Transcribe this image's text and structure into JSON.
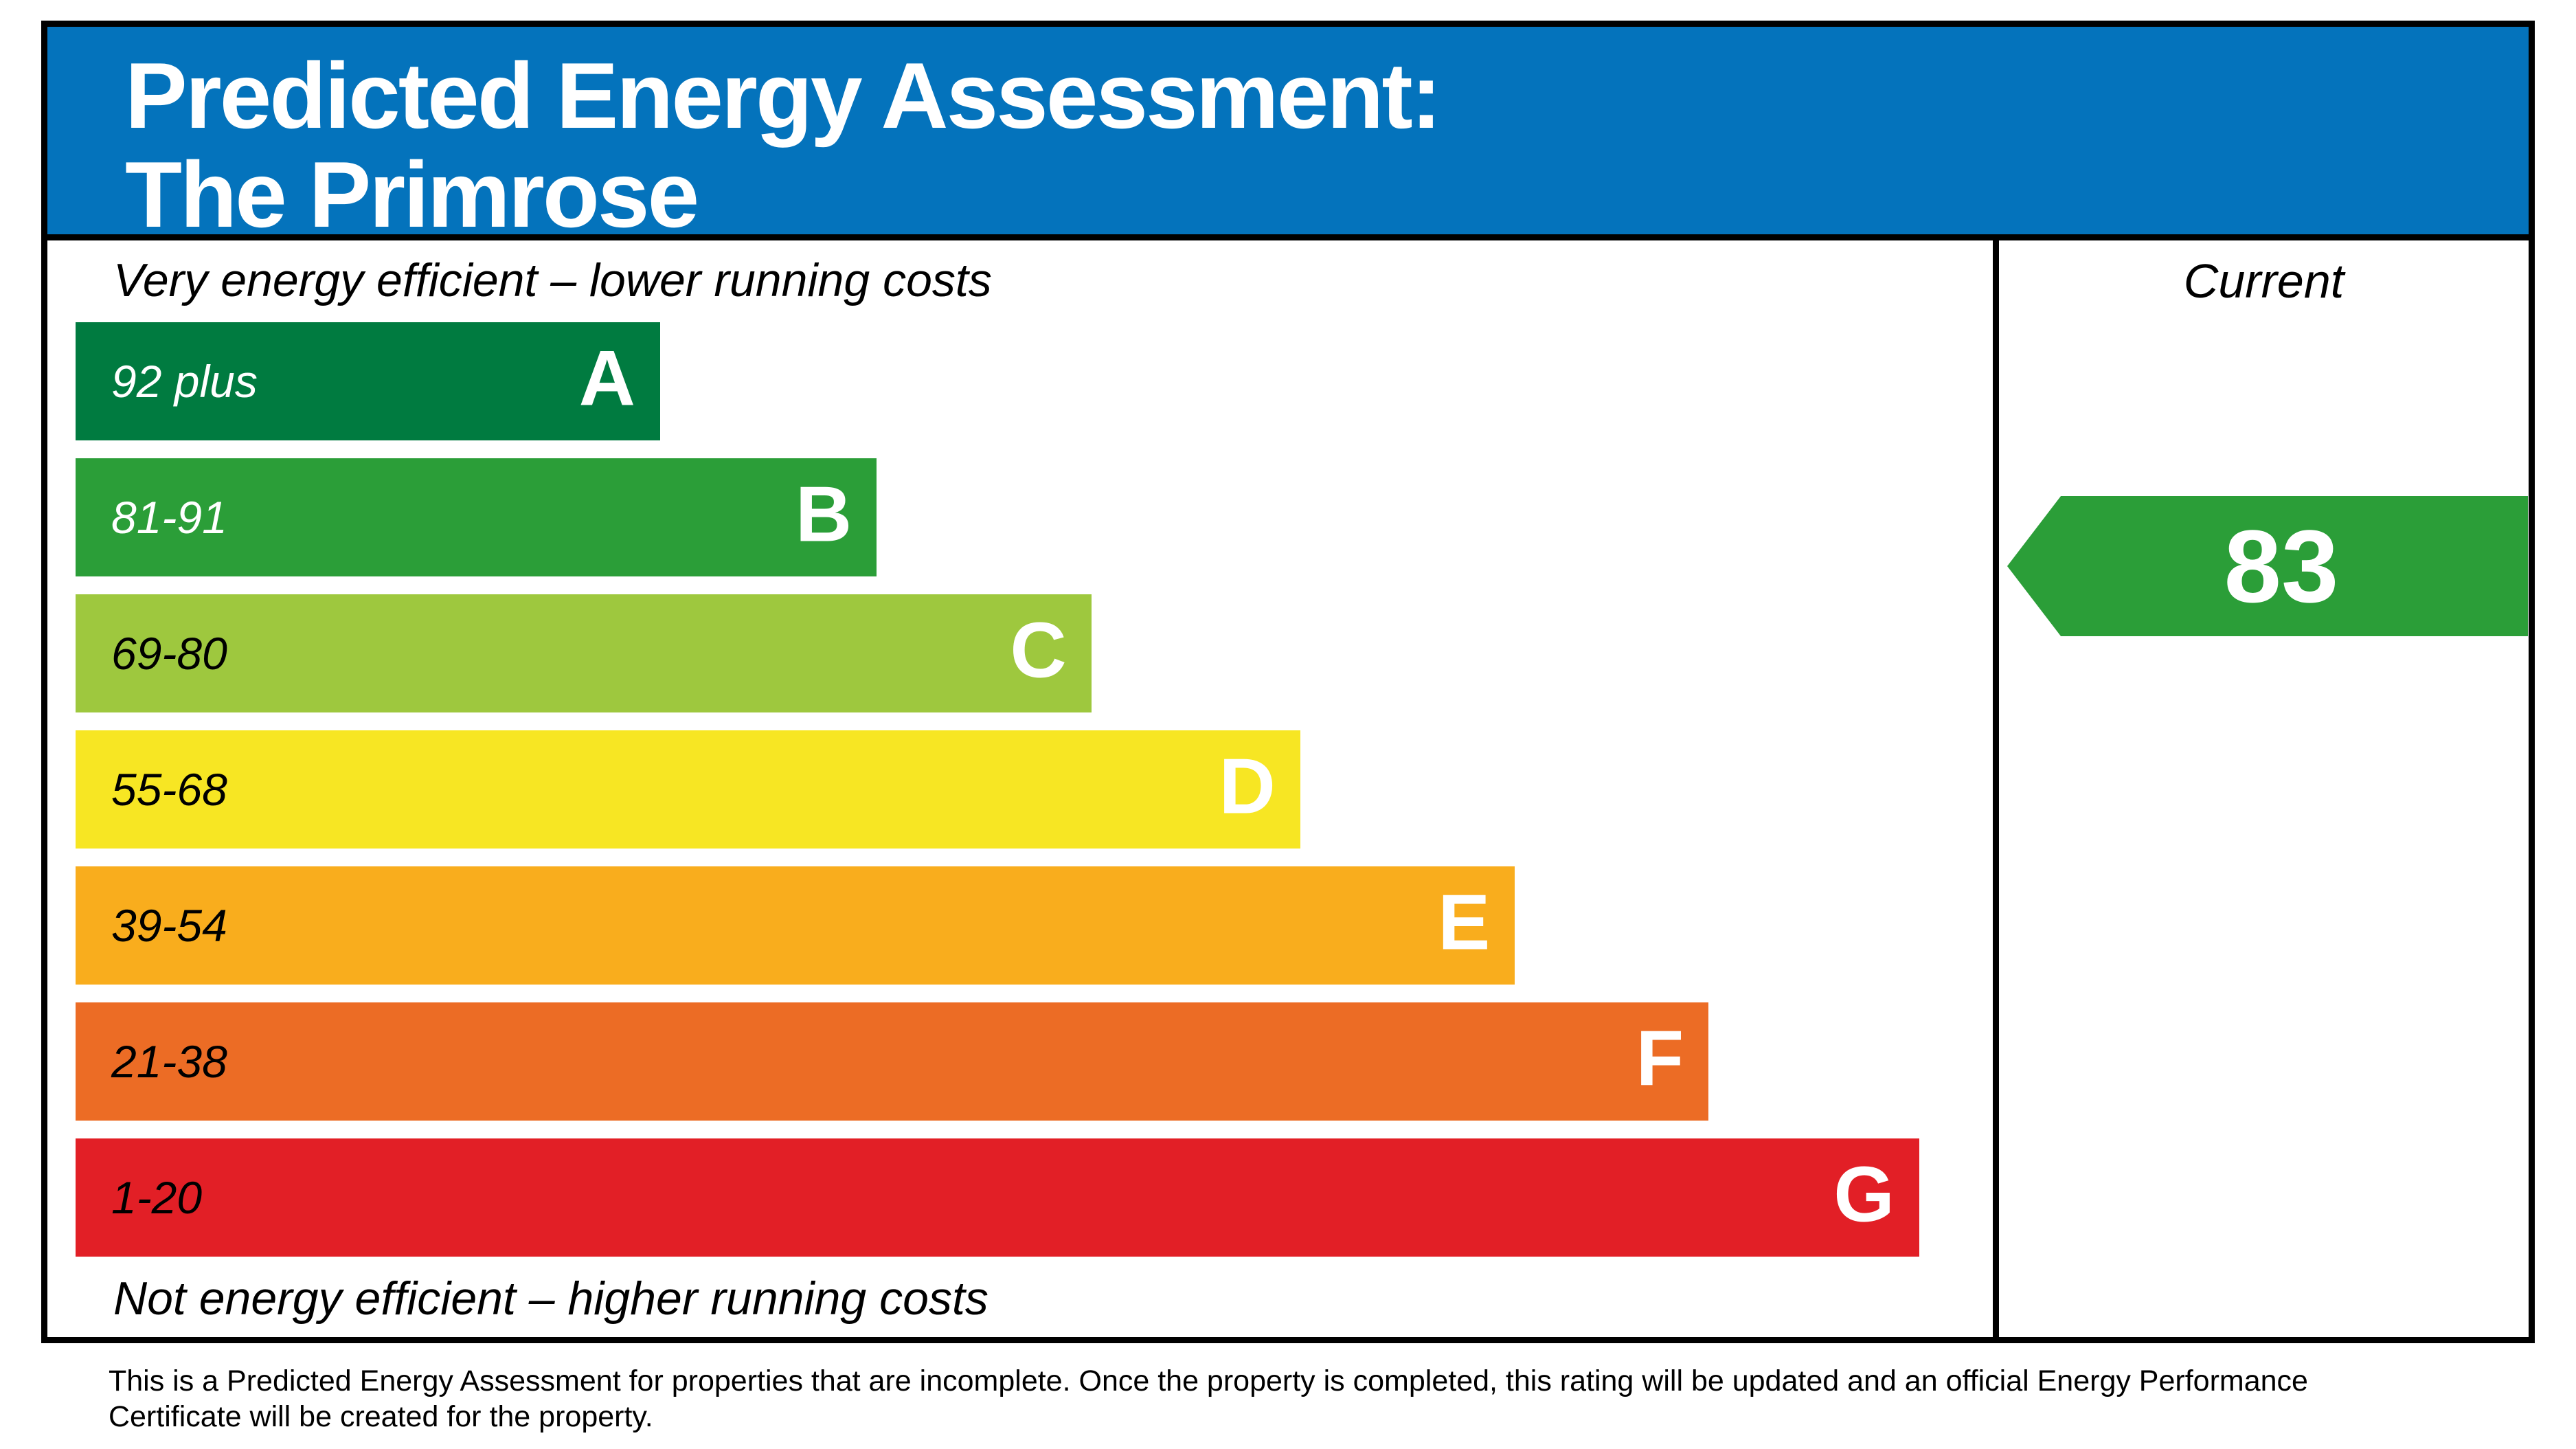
{
  "header": {
    "title_line1": "Predicted Energy Assessment:",
    "title_line2": "The Primrose",
    "background_color": "#0473bc",
    "text_color": "#ffffff"
  },
  "captions": {
    "top": "Very energy efficient – lower running costs",
    "bottom": "Not energy efficient – higher running costs"
  },
  "current_column": {
    "header": "Current",
    "value": "83",
    "color": "#2b9e38"
  },
  "chart_data": {
    "type": "bar",
    "title": "Predicted Energy Assessment: The Primrose",
    "bands": [
      {
        "grade": "A",
        "range": "92 plus",
        "color": "#007b40",
        "range_text_color": "#ffffff",
        "width_pct": 30.5
      },
      {
        "grade": "B",
        "range": "81-91",
        "color": "#2b9e38",
        "range_text_color": "#ffffff",
        "width_pct": 41.8
      },
      {
        "grade": "C",
        "range": "69-80",
        "color": "#9ec83e",
        "range_text_color": "#000000",
        "width_pct": 53.0
      },
      {
        "grade": "D",
        "range": "55-68",
        "color": "#f7e623",
        "range_text_color": "#000000",
        "width_pct": 63.9
      },
      {
        "grade": "E",
        "range": "39-54",
        "color": "#f9ad1d",
        "range_text_color": "#000000",
        "width_pct": 75.1
      },
      {
        "grade": "F",
        "range": "21-38",
        "color": "#ec6c25",
        "range_text_color": "#000000",
        "width_pct": 85.2
      },
      {
        "grade": "G",
        "range": "1-20",
        "color": "#e21f26",
        "range_text_color": "#000000",
        "width_pct": 96.2
      }
    ],
    "current_rating": 83,
    "current_band": "B",
    "legend_position": "right-column"
  },
  "footer": {
    "line1": "This is a Predicted Energy Assessment for properties that are incomplete. Once the property is completed, this rating will be updated and an official Energy Performance",
    "line2": "Certificate will be created for the property."
  }
}
